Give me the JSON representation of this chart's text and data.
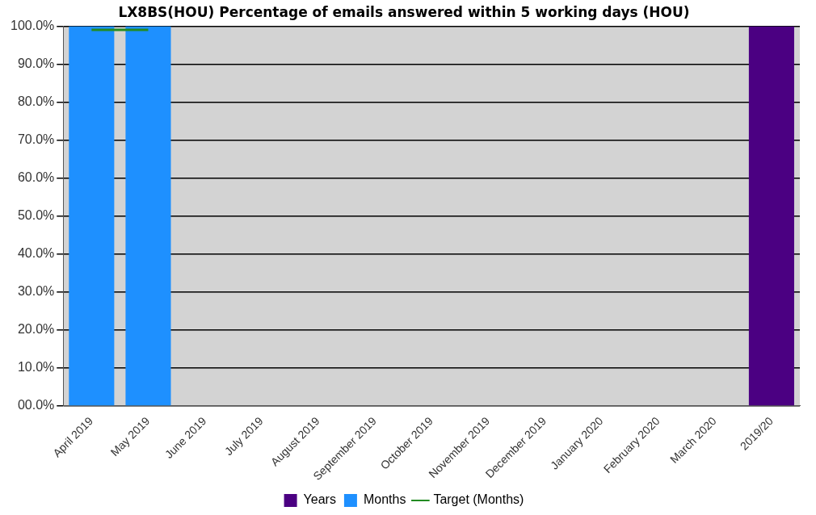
{
  "chart_data": {
    "type": "bar",
    "title": "LX8BS(HOU) Percentage of emails answered within 5 working days (HOU)",
    "categories": [
      "April 2019",
      "May 2019",
      "June 2019",
      "July 2019",
      "August 2019",
      "September 2019",
      "October 2019",
      "November 2019",
      "December 2019",
      "January 2020",
      "February 2020",
      "March 2020",
      "2019/20"
    ],
    "series": [
      {
        "name": "Years",
        "color": "#4b0082",
        "values": [
          null,
          null,
          null,
          null,
          null,
          null,
          null,
          null,
          null,
          null,
          null,
          null,
          100
        ]
      },
      {
        "name": "Months",
        "color": "#1e90ff",
        "values": [
          100,
          100,
          null,
          null,
          null,
          null,
          null,
          null,
          null,
          null,
          null,
          null,
          null
        ]
      },
      {
        "name": "Target (Months)",
        "type": "line",
        "color": "#228b22",
        "values": [
          99,
          99,
          null,
          null,
          null,
          null,
          null,
          null,
          null,
          null,
          null,
          null,
          null
        ]
      }
    ],
    "ylim": [
      0,
      100
    ],
    "yticks": [
      {
        "value": 0,
        "label": "00.0%"
      },
      {
        "value": 10,
        "label": "10.0%"
      },
      {
        "value": 20,
        "label": "20.0%"
      },
      {
        "value": 30,
        "label": "30.0%"
      },
      {
        "value": 40,
        "label": "40.0%"
      },
      {
        "value": 50,
        "label": "50.0%"
      },
      {
        "value": 60,
        "label": "60.0%"
      },
      {
        "value": 70,
        "label": "70.0%"
      },
      {
        "value": 80,
        "label": "80.0%"
      },
      {
        "value": 90,
        "label": "90.0%"
      },
      {
        "value": 100,
        "label": "100.0%"
      }
    ],
    "grid": "y",
    "legend": "bottom",
    "marker": "none"
  }
}
